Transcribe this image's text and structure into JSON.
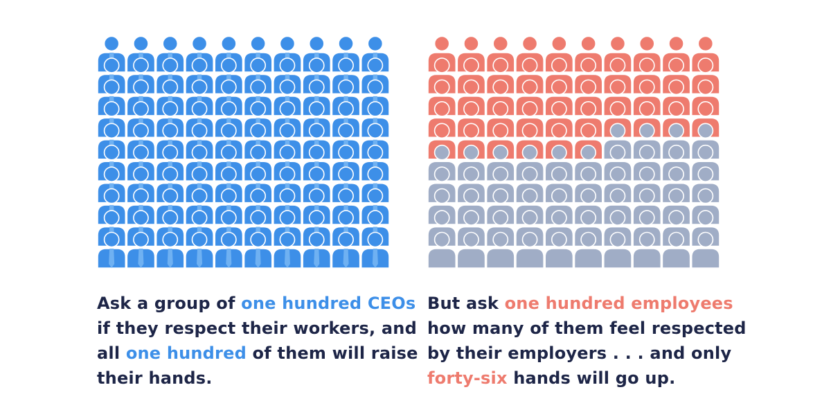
{
  "colors": {
    "ceo": "#3d8fe8",
    "employee_raised": "#ee7b6e",
    "employee_down": "#a0adc6",
    "text": "#1d2547"
  },
  "chart_data": [
    {
      "type": "pictogram",
      "total": 100,
      "columns": 10,
      "rows": 10,
      "series": [
        {
          "value": 100,
          "color": "#3d8fe8"
        }
      ],
      "icon": "person-with-tie-icon"
    },
    {
      "type": "pictogram",
      "total": 100,
      "columns": 10,
      "rows": 10,
      "series": [
        {
          "value": 46,
          "color": "#ee7b6e"
        },
        {
          "value": 54,
          "color": "#a0adc6"
        }
      ],
      "icon": "person-icon"
    }
  ],
  "captions": {
    "ceo": {
      "l1a": "Ask a group of ",
      "l1b": "one hundred CEOs",
      "l2": "if they respect their workers, and",
      "l3a": "all ",
      "l3b": "one hundred",
      "l3c": " of them will raise",
      "l4": "their hands."
    },
    "employee": {
      "l1a": "But ask ",
      "l1b": "one hundred employees",
      "l2": "how many of them feel respected",
      "l3": "by their employers . . . and only",
      "l4a": "forty-six",
      "l4b": " hands will go up."
    }
  }
}
